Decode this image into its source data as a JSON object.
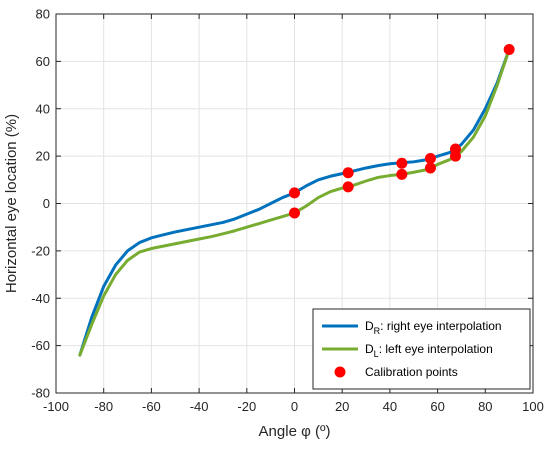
{
  "chart_data": {
    "type": "line",
    "title": "",
    "xlabel": "Angle φ (º)",
    "ylabel": "Horizontal eye location (%)",
    "xlim": [
      -100,
      100
    ],
    "ylim": [
      -80,
      80
    ],
    "xticks": [
      -100,
      -80,
      -60,
      -40,
      -20,
      0,
      20,
      40,
      60,
      80,
      100
    ],
    "yticks": [
      -80,
      -60,
      -40,
      -20,
      0,
      20,
      40,
      60,
      80
    ],
    "grid": true,
    "legend_position": "bottom-right",
    "series": [
      {
        "name": "right eye interpolation",
        "legend_prefix": "D",
        "legend_sub": "R",
        "color": "#0072BD",
        "style": "line",
        "x": [
          -90,
          -85,
          -80,
          -75,
          -70,
          -65,
          -60,
          -55,
          -50,
          -45,
          -40,
          -35,
          -30,
          -25,
          -20,
          -15,
          -10,
          -5,
          0,
          5,
          10,
          15,
          20,
          22.5,
          25,
          30,
          35,
          40,
          45,
          50,
          55,
          57,
          60,
          65,
          67.5,
          70,
          75,
          80,
          85,
          90
        ],
        "y": [
          -64,
          -48,
          -35,
          -26,
          -20,
          -16.5,
          -14.5,
          -13.2,
          -12,
          -11,
          -10,
          -9,
          -8,
          -6.5,
          -4.5,
          -2.5,
          0,
          2.5,
          4.5,
          7.5,
          10,
          11.5,
          12.6,
          13,
          13.8,
          15,
          16,
          16.8,
          17.2,
          17.6,
          18.4,
          19,
          20,
          21.5,
          23,
          25,
          31,
          40,
          51,
          65
        ]
      },
      {
        "name": "left eye interpolation",
        "legend_prefix": "D",
        "legend_sub": "L",
        "color": "#77AC30",
        "style": "line",
        "x": [
          -90,
          -85,
          -80,
          -75,
          -70,
          -65,
          -60,
          -55,
          -50,
          -45,
          -40,
          -35,
          -30,
          -25,
          -20,
          -15,
          -10,
          -5,
          0,
          5,
          10,
          15,
          20,
          22.5,
          25,
          30,
          35,
          40,
          45,
          50,
          55,
          57,
          60,
          65,
          67.5,
          70,
          75,
          80,
          85,
          90
        ],
        "y": [
          -64,
          -51,
          -39,
          -30,
          -24,
          -20.5,
          -19,
          -18,
          -17,
          -16,
          -15,
          -14,
          -12.8,
          -11.5,
          -10,
          -8.5,
          -7,
          -5.5,
          -4,
          -1,
          2.5,
          5,
          6.5,
          7,
          7.8,
          9.5,
          11,
          11.8,
          12.3,
          13.2,
          14.2,
          15,
          16.5,
          18.5,
          20,
          22,
          28,
          37,
          50,
          65
        ]
      },
      {
        "name": "Calibration points",
        "color": "#FF0000",
        "style": "markers",
        "x": [
          0,
          0,
          22.5,
          22.5,
          45,
          45,
          57,
          57,
          67.5,
          67.5,
          90
        ],
        "y": [
          4.5,
          -4,
          13,
          7,
          17,
          12.3,
          19,
          15,
          23,
          20,
          65
        ]
      }
    ]
  }
}
